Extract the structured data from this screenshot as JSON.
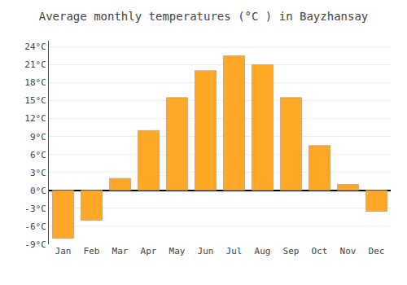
{
  "chart_data": {
    "type": "bar",
    "title": "Average monthly temperatures (°C ) in Bayzhansay",
    "categories": [
      "Jan",
      "Feb",
      "Mar",
      "Apr",
      "May",
      "Jun",
      "Jul",
      "Aug",
      "Sep",
      "Oct",
      "Nov",
      "Dec"
    ],
    "values": [
      -8,
      -5,
      2,
      10,
      15.5,
      20,
      22.5,
      21,
      15.5,
      7.5,
      1,
      -3.5
    ],
    "color": "#FFA726",
    "ylim": [
      -9,
      25
    ],
    "yticks": [
      {
        "value": -9,
        "label": "-9°C"
      },
      {
        "value": -6,
        "label": "-6°C"
      },
      {
        "value": -3,
        "label": "-3°C"
      },
      {
        "value": 0,
        "label": "0°C"
      },
      {
        "value": 3,
        "label": "3°C"
      },
      {
        "value": 6,
        "label": "6°C"
      },
      {
        "value": 9,
        "label": "9°C"
      },
      {
        "value": 12,
        "label": "12°C"
      },
      {
        "value": 15,
        "label": "15°C"
      },
      {
        "value": 18,
        "label": "18°C"
      },
      {
        "value": 21,
        "label": "21°C"
      },
      {
        "value": 24,
        "label": "24°C"
      }
    ],
    "grid": true
  }
}
